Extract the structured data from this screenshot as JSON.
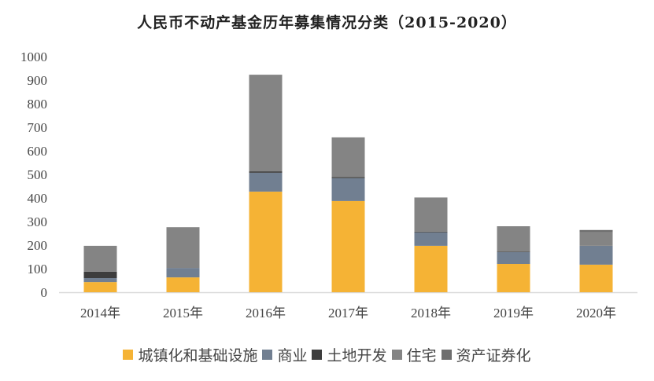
{
  "chart_data": {
    "type": "bar",
    "stacked": true,
    "title": "人民币不动产基金历年募集情况分类（2015-2020）",
    "categories": [
      "2014年",
      "2015年",
      "2016年",
      "2017年",
      "2018年",
      "2019年",
      "2020年"
    ],
    "ylim": [
      0,
      1000
    ],
    "yticks": [
      "0",
      "100",
      "200",
      "300",
      "400",
      "500",
      "600",
      "700",
      "800",
      "900",
      "1000"
    ],
    "grid": false,
    "legend": "bottom",
    "series": [
      {
        "name": "城镇化和基础设施",
        "color": "#f5b335",
        "values": [
          43,
          63,
          427,
          387,
          197,
          120,
          117
        ]
      },
      {
        "name": "商业",
        "color": "#717f91",
        "values": [
          17,
          40,
          80,
          97,
          57,
          50,
          80
        ]
      },
      {
        "name": "土地开发",
        "color": "#3d3d3d",
        "values": [
          27,
          0,
          6,
          5,
          3,
          2,
          0
        ]
      },
      {
        "name": "住宅",
        "color": "#848484",
        "values": [
          110,
          173,
          410,
          165,
          145,
          108,
          57
        ]
      },
      {
        "name": "资产证券化",
        "color": "#6e6e6e",
        "values": [
          0,
          0,
          0,
          3,
          0,
          0,
          10
        ]
      }
    ]
  }
}
